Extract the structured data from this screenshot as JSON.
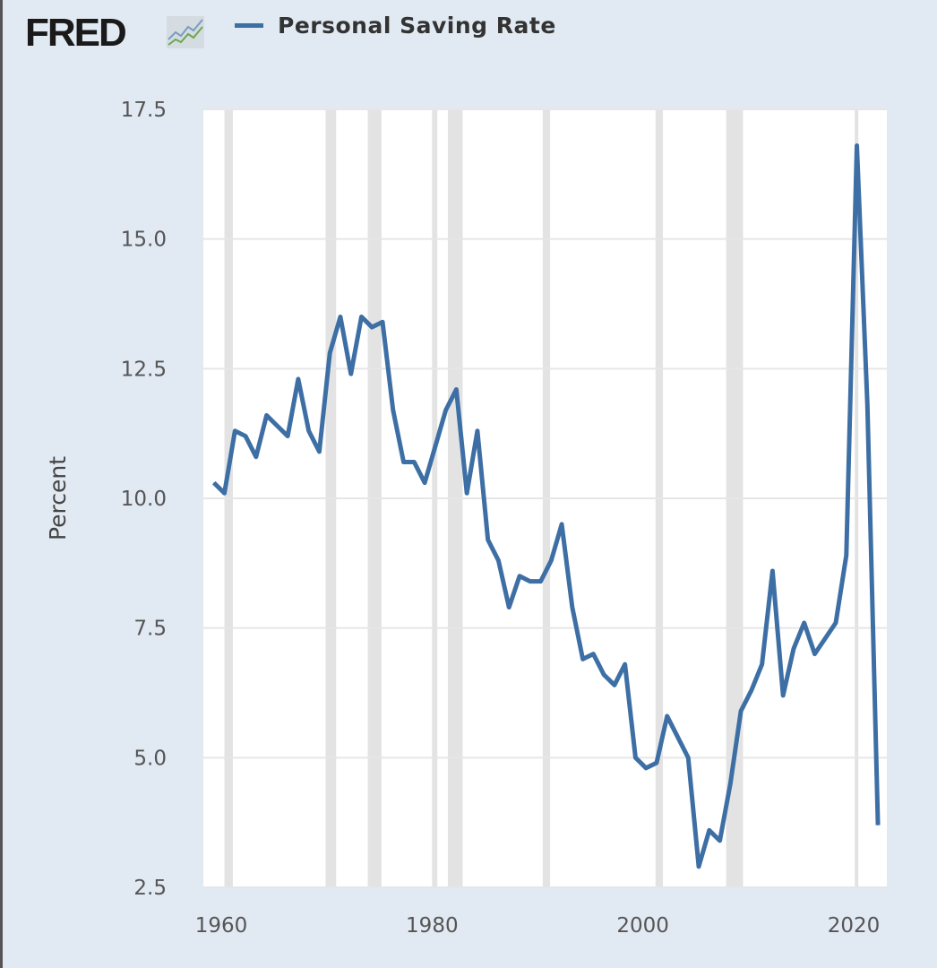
{
  "header": {
    "logo_text": "FRED",
    "logo_icon": "chart-line-icon"
  },
  "chart_data": {
    "type": "line",
    "title": "Personal Saving Rate",
    "legend": [
      {
        "name": "Personal Saving Rate",
        "color": "#3d6fa5"
      }
    ],
    "legend_placement": "top-left",
    "xlabel": "",
    "ylabel": "Percent",
    "xlim": [
      1958.3,
      2023.1
    ],
    "ylim": [
      2.5,
      17.5
    ],
    "grid": true,
    "xticks": [
      1960,
      1980,
      2000,
      2020
    ],
    "xtick_labels": [
      "1960",
      "1980",
      "2000",
      "2020"
    ],
    "yticks": [
      2.5,
      5.0,
      7.5,
      10.0,
      12.5,
      15.0,
      17.5
    ],
    "ytick_labels": [
      "2.5",
      "5.0",
      "7.5",
      "10.0",
      "12.5",
      "15.0",
      "17.5"
    ],
    "recessions": [
      [
        1960.3,
        1961.1
      ],
      [
        1969.9,
        1970.9
      ],
      [
        1973.9,
        1975.2
      ],
      [
        1980.0,
        1980.5
      ],
      [
        1981.5,
        1982.9
      ],
      [
        1990.5,
        1991.2
      ],
      [
        2001.2,
        2001.9
      ],
      [
        2007.9,
        2009.5
      ],
      [
        2020.1,
        2020.3
      ]
    ],
    "x": [
      1959,
      1960,
      1961,
      1962,
      1963,
      1964,
      1965,
      1966,
      1967,
      1968,
      1969,
      1970,
      1971,
      1972,
      1973,
      1974,
      1975,
      1976,
      1977,
      1978,
      1979,
      1980,
      1981,
      1982,
      1983,
      1984,
      1985,
      1986,
      1987,
      1988,
      1989,
      1990,
      1991,
      1992,
      1993,
      1994,
      1995,
      1996,
      1997,
      1998,
      1999,
      2000,
      2001,
      2002,
      2003,
      2004,
      2005,
      2006,
      2007,
      2008,
      2009,
      2010,
      2011,
      2012,
      2013,
      2014,
      2015,
      2016,
      2017,
      2018,
      2019,
      2020,
      2021,
      2022
    ],
    "series": [
      {
        "name": "Personal Saving Rate",
        "color": "#3d6fa5",
        "values": [
          10.3,
          10.1,
          11.3,
          11.2,
          10.8,
          11.6,
          11.4,
          11.2,
          12.3,
          11.3,
          10.9,
          12.8,
          13.5,
          12.4,
          13.5,
          13.3,
          13.4,
          11.7,
          10.7,
          10.7,
          10.3,
          11.0,
          11.7,
          12.1,
          10.1,
          11.3,
          9.2,
          8.8,
          7.9,
          8.5,
          8.4,
          8.4,
          8.8,
          9.5,
          7.9,
          6.9,
          7.0,
          6.6,
          6.4,
          6.8,
          5.0,
          4.8,
          4.9,
          5.8,
          5.4,
          5.0,
          2.9,
          3.6,
          3.4,
          4.5,
          5.9,
          6.3,
          6.8,
          8.6,
          6.2,
          7.1,
          7.6,
          7.0,
          7.3,
          7.6,
          8.9,
          16.8,
          11.8,
          3.7
        ]
      }
    ]
  }
}
